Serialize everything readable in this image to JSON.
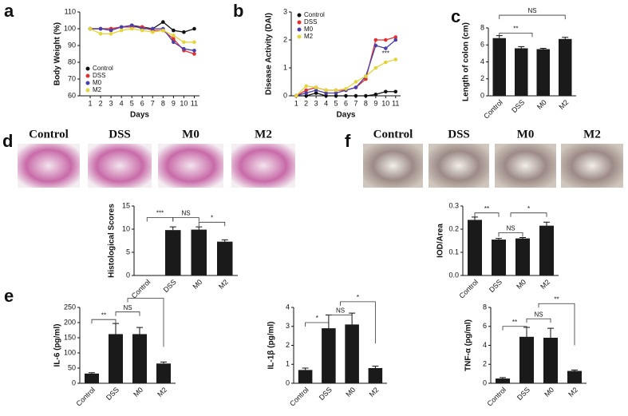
{
  "chart_data": [
    {
      "type": "line",
      "panel": "a",
      "ylabel": "Body Weight (%)",
      "xlabel": "Days",
      "x": [
        1,
        2,
        3,
        4,
        5,
        6,
        7,
        8,
        9,
        10,
        11
      ],
      "xlim": [
        0,
        11.5
      ],
      "xticks": [
        1,
        2,
        3,
        4,
        5,
        6,
        7,
        8,
        9,
        10,
        11
      ],
      "ylim": [
        60,
        110
      ],
      "yticks": [
        60,
        70,
        80,
        90,
        100,
        110
      ],
      "legend": "lower left",
      "series": [
        {
          "name": "Control",
          "color": "#111111",
          "values": [
            100,
            100,
            100,
            101,
            102,
            101,
            100,
            104,
            99,
            98,
            100
          ]
        },
        {
          "name": "DSS",
          "color": "#e03030",
          "values": [
            100,
            100,
            100,
            101,
            101,
            101,
            99,
            99,
            94,
            87,
            85
          ]
        },
        {
          "name": "M0",
          "color": "#4a3fa8",
          "values": [
            100,
            100,
            99,
            101,
            102,
            100,
            100,
            100,
            92,
            88,
            87
          ]
        },
        {
          "name": "M2",
          "color": "#e3d43c",
          "values": [
            100,
            97,
            97,
            99,
            100,
            99,
            98,
            99,
            96,
            92,
            92
          ]
        }
      ]
    },
    {
      "type": "line",
      "panel": "b",
      "ylabel": "Disease Activity (DAI)",
      "xlabel": "Days",
      "x": [
        1,
        2,
        3,
        4,
        5,
        6,
        7,
        8,
        9,
        10,
        11
      ],
      "xlim": [
        0.5,
        11.5
      ],
      "xticks": [
        1,
        2,
        3,
        4,
        5,
        6,
        7,
        8,
        9,
        10,
        11
      ],
      "ylim": [
        0,
        3
      ],
      "yticks": [
        0,
        1,
        2,
        3
      ],
      "legend": "upper left",
      "annotations": [
        "***"
      ],
      "series": [
        {
          "name": "Control",
          "color": "#111111",
          "values": [
            0,
            0,
            0.1,
            0,
            0,
            0,
            0,
            0,
            0.05,
            0.15,
            0.15
          ]
        },
        {
          "name": "DSS",
          "color": "#e03030",
          "values": [
            0,
            0.2,
            0.3,
            0.2,
            0.2,
            0.2,
            0.3,
            0.6,
            2.0,
            2.0,
            2.1
          ]
        },
        {
          "name": "M0",
          "color": "#4a3fa8",
          "values": [
            0,
            0.1,
            0.2,
            0.1,
            0.1,
            0.2,
            0.3,
            0.7,
            1.8,
            1.7,
            2.0
          ]
        },
        {
          "name": "M2",
          "color": "#e3d43c",
          "values": [
            0,
            0.35,
            0.3,
            0.2,
            0.2,
            0.25,
            0.5,
            0.7,
            1.0,
            1.2,
            1.3
          ]
        }
      ]
    },
    {
      "type": "bar",
      "panel": "c",
      "ylabel": "Length of colon (cm)",
      "color": "#1a1a1a",
      "categories": [
        "Control",
        "DSS",
        "M0",
        "M2"
      ],
      "values": [
        6.8,
        5.6,
        5.5,
        6.7
      ],
      "errors": [
        0.3,
        0.2,
        0.1,
        0.2
      ],
      "ylim": [
        0,
        8
      ],
      "yticks": [
        0,
        2,
        4,
        6,
        8
      ],
      "annotations": [
        "**",
        "NS"
      ]
    },
    {
      "type": "bar",
      "panel": "d",
      "ylabel": "Histological Scores",
      "color": "#1a1a1a",
      "image_labels": [
        "Control",
        "DSS",
        "M0",
        "M2"
      ],
      "categories": [
        "Control",
        "DSS",
        "M0",
        "M2"
      ],
      "values": [
        0,
        9.8,
        9.9,
        7.3
      ],
      "errors": [
        0,
        0.7,
        0.6,
        0.4
      ],
      "ylim": [
        0,
        15
      ],
      "yticks": [
        0,
        5,
        10,
        15
      ],
      "annotations": [
        "***",
        "NS",
        "*"
      ]
    },
    {
      "type": "bar",
      "panel": "f",
      "ylabel": "IOD/Area",
      "color": "#1a1a1a",
      "image_labels": [
        "Control",
        "DSS",
        "M0",
        "M2"
      ],
      "categories": [
        "Control",
        "DSS",
        "M0",
        "M2"
      ],
      "values": [
        0.24,
        0.155,
        0.16,
        0.215
      ],
      "errors": [
        0.012,
        0.005,
        0.004,
        0.015
      ],
      "ylim": [
        0,
        0.3
      ],
      "yticks": [
        {
          "value": 0,
          "label": "0.0"
        },
        0.1,
        0.2,
        0.3
      ],
      "annotations": [
        "**",
        "NS",
        "*"
      ]
    },
    {
      "type": "bar",
      "panel": "e",
      "ylabel": "IL-6 (pg/ml)",
      "color": "#1a1a1a",
      "categories": [
        "Control",
        "DSS",
        "M0",
        "M2"
      ],
      "values": [
        32,
        162,
        162,
        65
      ],
      "errors": [
        3,
        35,
        22,
        5
      ],
      "ylim": [
        0,
        250
      ],
      "yticks": [
        0,
        50,
        100,
        150,
        200,
        250
      ],
      "annotations": [
        "**",
        "NS"
      ]
    },
    {
      "type": "bar",
      "ylabel": "IL-1β (pg/ml)",
      "color": "#1a1a1a",
      "categories": [
        "Control",
        "DSS",
        "M0",
        "M2"
      ],
      "values": [
        0.7,
        2.9,
        3.1,
        0.8
      ],
      "errors": [
        0.1,
        0.7,
        0.6,
        0.1
      ],
      "ylim": [
        0,
        4
      ],
      "yticks": [
        0,
        1,
        2,
        3,
        4
      ],
      "annotations": [
        "*",
        "NS",
        "*"
      ]
    },
    {
      "type": "bar",
      "ylabel": "TNF-α (pg/ml)",
      "color": "#1a1a1a",
      "categories": [
        "Control",
        "DSS",
        "M0",
        "M2"
      ],
      "values": [
        0.5,
        4.9,
        4.8,
        1.3
      ],
      "errors": [
        0.1,
        1.0,
        1.0,
        0.1
      ],
      "ylim": [
        0,
        8
      ],
      "yticks": [
        0,
        2,
        4,
        6,
        8
      ],
      "annotations": [
        "**",
        "NS",
        "**"
      ]
    }
  ]
}
